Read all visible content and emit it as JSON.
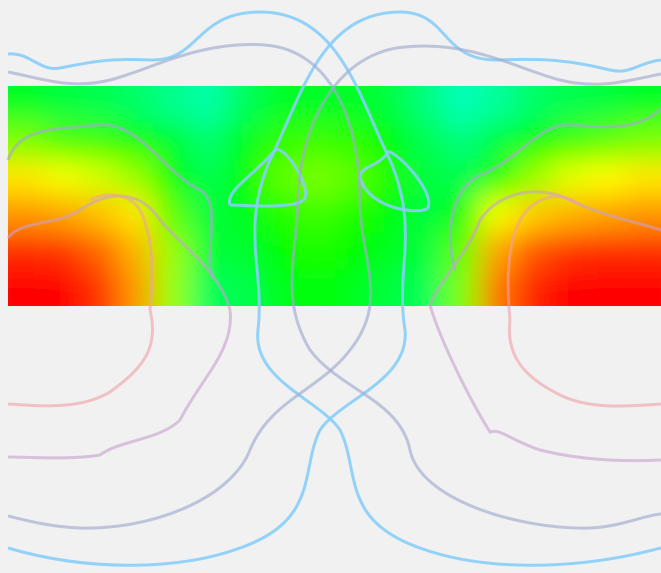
{
  "chart_data": {
    "type": "heatmap",
    "title": "",
    "xlabel": "",
    "ylabel": "",
    "grid": false,
    "legend": "none",
    "colorscale": [
      "#ff0000",
      "#ff8c00",
      "#ffff00",
      "#00ff00",
      "#00ff80",
      "#00ffff",
      "#0090ff"
    ],
    "heatmap": {
      "rows": 6,
      "cols": 18,
      "values": [
        [
          0.55,
          0.58,
          0.6,
          0.63,
          0.68,
          0.72,
          0.62,
          0.55,
          0.55,
          0.55,
          0.58,
          0.66,
          0.74,
          0.7,
          0.63,
          0.6,
          0.58,
          0.55
        ],
        [
          0.42,
          0.45,
          0.46,
          0.49,
          0.56,
          0.64,
          0.54,
          0.47,
          0.46,
          0.47,
          0.5,
          0.6,
          0.66,
          0.58,
          0.5,
          0.46,
          0.44,
          0.42
        ],
        [
          0.3,
          0.34,
          0.36,
          0.4,
          0.5,
          0.6,
          0.52,
          0.44,
          0.42,
          0.44,
          0.48,
          0.58,
          0.6,
          0.48,
          0.4,
          0.35,
          0.33,
          0.3
        ],
        [
          0.18,
          0.2,
          0.24,
          0.3,
          0.44,
          0.58,
          0.54,
          0.48,
          0.46,
          0.48,
          0.52,
          0.58,
          0.52,
          0.34,
          0.26,
          0.22,
          0.2,
          0.18
        ],
        [
          0.05,
          0.06,
          0.12,
          0.22,
          0.4,
          0.58,
          0.56,
          0.5,
          0.48,
          0.5,
          0.54,
          0.58,
          0.44,
          0.2,
          0.1,
          0.06,
          0.05,
          0.05
        ],
        [
          0.0,
          0.0,
          0.06,
          0.18,
          0.4,
          0.62,
          0.6,
          0.54,
          0.5,
          0.54,
          0.58,
          0.62,
          0.42,
          0.14,
          0.04,
          0.0,
          0.0,
          0.0
        ]
      ]
    },
    "contours": [
      {
        "level": 1,
        "color": "#87cefa",
        "opacity": 0.9
      },
      {
        "level": 2,
        "color": "#a0aad0",
        "opacity": 0.65
      },
      {
        "level": 3,
        "color": "#c8a0d0",
        "opacity": 0.6
      },
      {
        "level": 4,
        "color": "#f0a0a8",
        "opacity": 0.6
      }
    ]
  }
}
